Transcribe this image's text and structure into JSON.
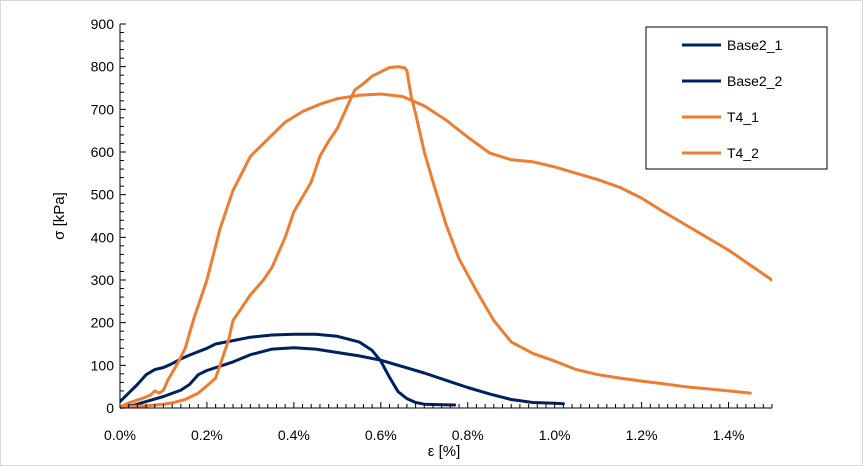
{
  "chart_data": {
    "type": "line",
    "xlabel": "ε [%]",
    "ylabel": "σ [kPa]",
    "xlim": [
      0,
      1.5
    ],
    "ylim": [
      0,
      900
    ],
    "xticks": [
      0,
      0.2,
      0.4,
      0.6,
      0.8,
      1.0,
      1.2,
      1.4
    ],
    "xtick_labels": [
      "0.0%",
      "0.2%",
      "0.4%",
      "0.6%",
      "0.8%",
      "1.0%",
      "1.2%",
      "1.4%"
    ],
    "yticks": [
      0,
      100,
      200,
      300,
      400,
      500,
      600,
      700,
      800,
      900
    ],
    "ytick_labels": [
      "0",
      "100",
      "200",
      "300",
      "400",
      "500",
      "600",
      "700",
      "800",
      "900"
    ],
    "grid": false,
    "legend_position": "top-right",
    "series": [
      {
        "name": "Base2_1",
        "color": "#002060",
        "points": [
          [
            0.0,
            15
          ],
          [
            0.02,
            35
          ],
          [
            0.04,
            55
          ],
          [
            0.06,
            78
          ],
          [
            0.08,
            90
          ],
          [
            0.1,
            95
          ],
          [
            0.12,
            104
          ],
          [
            0.14,
            115
          ],
          [
            0.16,
            124
          ],
          [
            0.2,
            140
          ],
          [
            0.22,
            150
          ],
          [
            0.26,
            158
          ],
          [
            0.3,
            166
          ],
          [
            0.35,
            171
          ],
          [
            0.4,
            173
          ],
          [
            0.45,
            173
          ],
          [
            0.5,
            168
          ],
          [
            0.55,
            155
          ],
          [
            0.58,
            135
          ],
          [
            0.6,
            110
          ],
          [
            0.62,
            72
          ],
          [
            0.64,
            38
          ],
          [
            0.66,
            22
          ],
          [
            0.68,
            13
          ],
          [
            0.7,
            9
          ],
          [
            0.73,
            8
          ],
          [
            0.77,
            7
          ]
        ]
      },
      {
        "name": "Base2_2",
        "color": "#002060",
        "points": [
          [
            0.0,
            2
          ],
          [
            0.03,
            6
          ],
          [
            0.06,
            15
          ],
          [
            0.1,
            27
          ],
          [
            0.14,
            42
          ],
          [
            0.16,
            55
          ],
          [
            0.18,
            78
          ],
          [
            0.2,
            88
          ],
          [
            0.23,
            98
          ],
          [
            0.26,
            108
          ],
          [
            0.3,
            125
          ],
          [
            0.35,
            138
          ],
          [
            0.4,
            141
          ],
          [
            0.45,
            138
          ],
          [
            0.5,
            130
          ],
          [
            0.55,
            122
          ],
          [
            0.6,
            112
          ],
          [
            0.65,
            97
          ],
          [
            0.7,
            82
          ],
          [
            0.75,
            65
          ],
          [
            0.8,
            48
          ],
          [
            0.85,
            33
          ],
          [
            0.9,
            20
          ],
          [
            0.95,
            13
          ],
          [
            1.0,
            11
          ],
          [
            1.02,
            10
          ]
        ]
      },
      {
        "name": "T4_1",
        "color": "#ED7D31",
        "points": [
          [
            0.0,
            2
          ],
          [
            0.02,
            12
          ],
          [
            0.05,
            22
          ],
          [
            0.07,
            30
          ],
          [
            0.08,
            40
          ],
          [
            0.09,
            35
          ],
          [
            0.1,
            42
          ],
          [
            0.11,
            65
          ],
          [
            0.13,
            100
          ],
          [
            0.15,
            140
          ],
          [
            0.17,
            210
          ],
          [
            0.2,
            300
          ],
          [
            0.23,
            420
          ],
          [
            0.26,
            510
          ],
          [
            0.3,
            590
          ],
          [
            0.34,
            630
          ],
          [
            0.38,
            670
          ],
          [
            0.42,
            695
          ],
          [
            0.46,
            712
          ],
          [
            0.5,
            725
          ],
          [
            0.55,
            733
          ],
          [
            0.6,
            736
          ],
          [
            0.65,
            730
          ],
          [
            0.7,
            708
          ],
          [
            0.75,
            675
          ],
          [
            0.8,
            635
          ],
          [
            0.85,
            598
          ],
          [
            0.9,
            582
          ],
          [
            0.95,
            577
          ],
          [
            1.0,
            565
          ],
          [
            1.05,
            550
          ],
          [
            1.1,
            535
          ],
          [
            1.15,
            517
          ],
          [
            1.2,
            492
          ],
          [
            1.25,
            460
          ],
          [
            1.3,
            430
          ],
          [
            1.35,
            400
          ],
          [
            1.4,
            370
          ],
          [
            1.45,
            335
          ],
          [
            1.5,
            300
          ]
        ]
      },
      {
        "name": "T4_2",
        "color": "#ED7D31",
        "points": [
          [
            0.0,
            1
          ],
          [
            0.03,
            4
          ],
          [
            0.06,
            5
          ],
          [
            0.1,
            9
          ],
          [
            0.12,
            12
          ],
          [
            0.15,
            20
          ],
          [
            0.18,
            35
          ],
          [
            0.2,
            52
          ],
          [
            0.22,
            70
          ],
          [
            0.23,
            100
          ],
          [
            0.25,
            160
          ],
          [
            0.26,
            205
          ],
          [
            0.28,
            235
          ],
          [
            0.3,
            265
          ],
          [
            0.33,
            300
          ],
          [
            0.35,
            330
          ],
          [
            0.38,
            400
          ],
          [
            0.4,
            460
          ],
          [
            0.42,
            495
          ],
          [
            0.44,
            530
          ],
          [
            0.46,
            590
          ],
          [
            0.48,
            625
          ],
          [
            0.5,
            655
          ],
          [
            0.52,
            700
          ],
          [
            0.54,
            745
          ],
          [
            0.56,
            760
          ],
          [
            0.58,
            778
          ],
          [
            0.6,
            788
          ],
          [
            0.62,
            798
          ],
          [
            0.64,
            800
          ],
          [
            0.655,
            797
          ],
          [
            0.66,
            790
          ],
          [
            0.67,
            730
          ],
          [
            0.68,
            690
          ],
          [
            0.7,
            600
          ],
          [
            0.72,
            530
          ],
          [
            0.75,
            430
          ],
          [
            0.78,
            350
          ],
          [
            0.82,
            275
          ],
          [
            0.86,
            205
          ],
          [
            0.9,
            155
          ],
          [
            0.95,
            128
          ],
          [
            1.0,
            110
          ],
          [
            1.05,
            90
          ],
          [
            1.1,
            78
          ],
          [
            1.15,
            70
          ],
          [
            1.2,
            63
          ],
          [
            1.25,
            57
          ],
          [
            1.3,
            50
          ],
          [
            1.35,
            45
          ],
          [
            1.4,
            40
          ],
          [
            1.45,
            35
          ]
        ]
      }
    ]
  }
}
